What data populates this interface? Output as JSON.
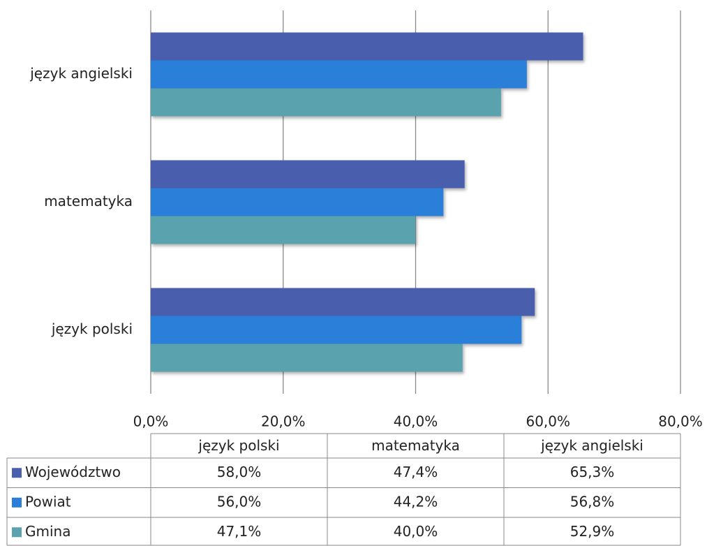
{
  "chart_data": {
    "type": "bar",
    "orientation": "horizontal",
    "categories": [
      "język polski",
      "matematyka",
      "język angielski"
    ],
    "series": [
      {
        "name": "Województwo",
        "color": "#4a5fad",
        "values": [
          58.0,
          47.4,
          65.3
        ],
        "value_labels": [
          "58,0%",
          "47,4%",
          "65,3%"
        ]
      },
      {
        "name": "Powiat",
        "color": "#2b7fd9",
        "values": [
          56.0,
          44.2,
          56.8
        ],
        "value_labels": [
          "56,0%",
          "44,2%",
          "56,8%"
        ]
      },
      {
        "name": "Gmina",
        "color": "#5aa3ae",
        "values": [
          47.1,
          40.0,
          52.9
        ],
        "value_labels": [
          "47,1%",
          "40,0%",
          "52,9%"
        ]
      }
    ],
    "xlim": [
      0,
      80
    ],
    "xticks": [
      {
        "value": 0,
        "label": "0,0%"
      },
      {
        "value": 20,
        "label": "20,0%"
      },
      {
        "value": 40,
        "label": "40,0%"
      },
      {
        "value": 60,
        "label": "60,0%"
      },
      {
        "value": 80,
        "label": "80,0%"
      }
    ],
    "grid": true
  }
}
